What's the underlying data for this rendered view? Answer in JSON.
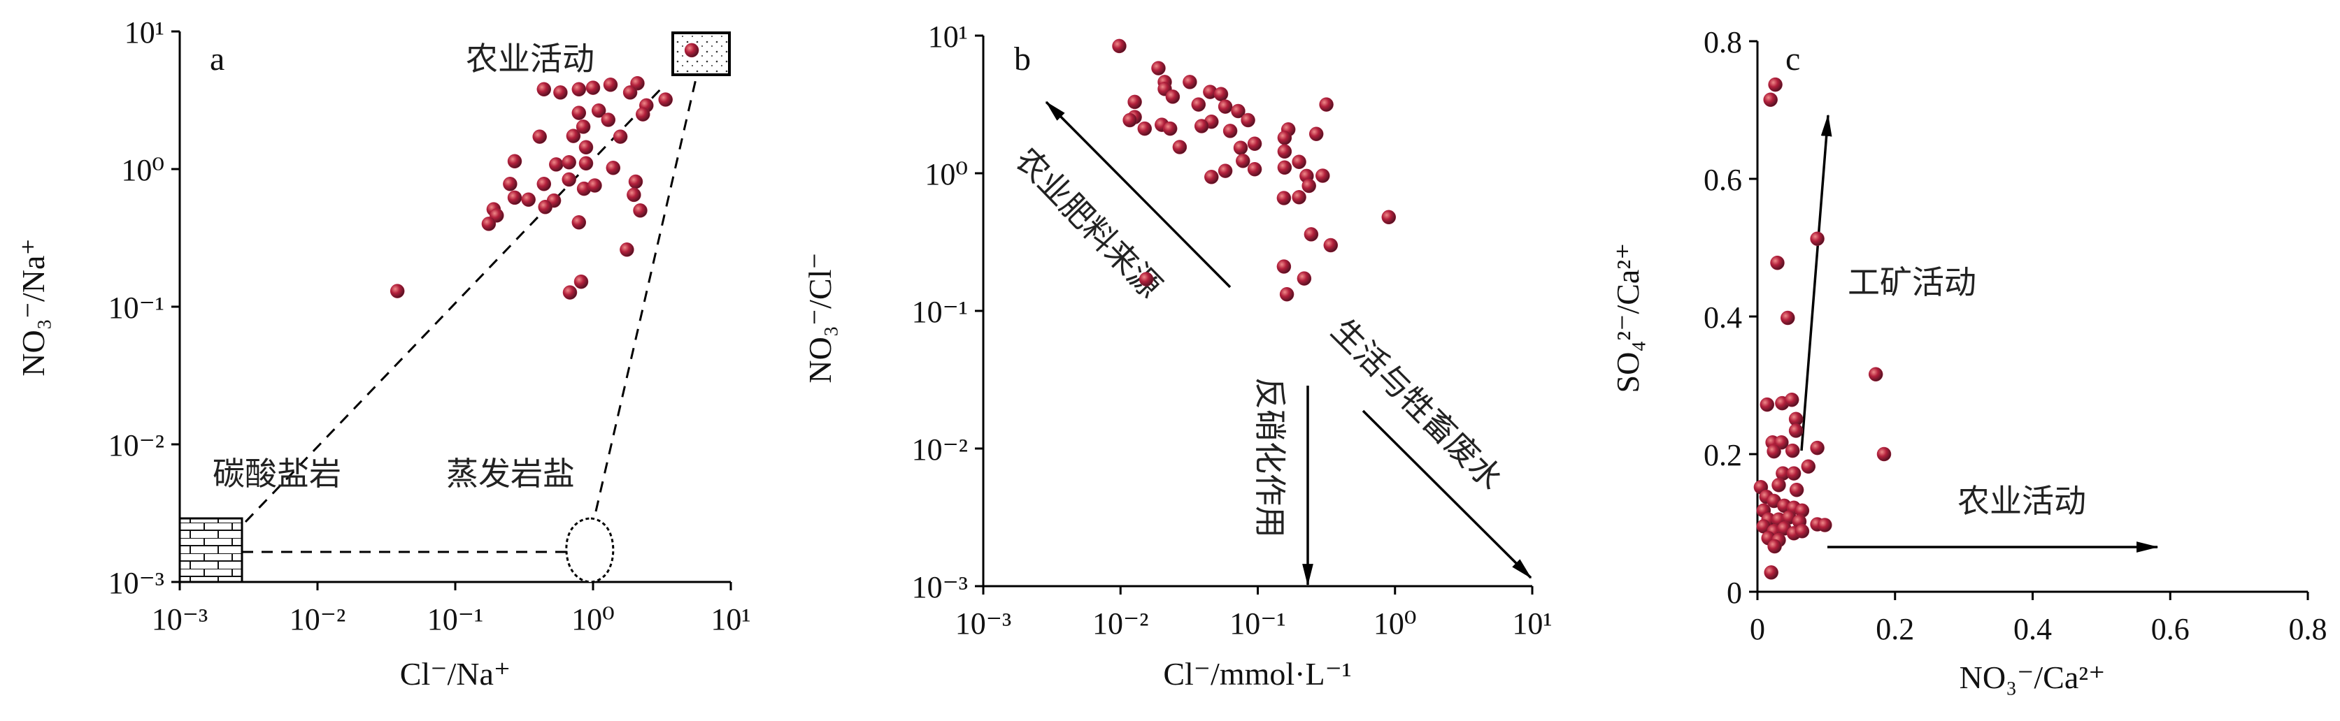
{
  "chart_data": [
    {
      "type": "scatter",
      "panel_label": "a",
      "xlabel": "Cl⁻/Na⁺",
      "ylabel": "NO₃⁻/Na⁺",
      "xscale": "log",
      "yscale": "log",
      "xlim": [
        0.001,
        10
      ],
      "ylim": [
        0.001,
        10
      ],
      "xticks": [
        "10⁻³",
        "10⁻²",
        "10⁻¹",
        "10⁰",
        "10¹"
      ],
      "yticks": [
        "10⁻³",
        "10⁻²",
        "10⁻¹",
        "10⁰",
        "10¹"
      ],
      "annotations": [
        "农业活动",
        "碳酸盐岩",
        "蒸发岩盐"
      ],
      "point_color": "#b3203c",
      "points": [
        [
          5.2,
          7.3
        ],
        [
          0.44,
          3.8
        ],
        [
          0.58,
          3.6
        ],
        [
          0.79,
          3.8
        ],
        [
          1.0,
          3.9
        ],
        [
          1.34,
          4.1
        ],
        [
          2.1,
          4.2
        ],
        [
          1.86,
          3.6
        ],
        [
          3.36,
          3.2
        ],
        [
          2.44,
          2.9
        ],
        [
          2.3,
          2.5
        ],
        [
          0.79,
          2.56
        ],
        [
          1.1,
          2.66
        ],
        [
          1.29,
          2.28
        ],
        [
          0.85,
          2.03
        ],
        [
          0.41,
          1.72
        ],
        [
          0.72,
          1.74
        ],
        [
          1.58,
          1.72
        ],
        [
          0.89,
          1.44
        ],
        [
          0.27,
          1.14
        ],
        [
          0.54,
          1.08
        ],
        [
          0.67,
          1.12
        ],
        [
          0.89,
          1.1
        ],
        [
          1.4,
          1.02
        ],
        [
          0.67,
          0.84
        ],
        [
          0.25,
          0.78
        ],
        [
          0.44,
          0.78
        ],
        [
          0.86,
          0.72
        ],
        [
          1.03,
          0.76
        ],
        [
          2.04,
          0.81
        ],
        [
          1.98,
          0.65
        ],
        [
          0.27,
          0.62
        ],
        [
          0.34,
          0.6
        ],
        [
          0.52,
          0.59
        ],
        [
          0.45,
          0.53
        ],
        [
          0.19,
          0.51
        ],
        [
          0.2,
          0.46
        ],
        [
          2.2,
          0.5
        ],
        [
          0.175,
          0.4
        ],
        [
          0.79,
          0.41
        ],
        [
          1.76,
          0.26
        ],
        [
          0.82,
          0.152
        ],
        [
          0.68,
          0.127
        ],
        [
          0.038,
          0.13
        ]
      ]
    },
    {
      "type": "scatter",
      "panel_label": "b",
      "xlabel": "Cl⁻/mmol·L⁻¹",
      "ylabel": "NO₃⁻/Cl⁻",
      "xscale": "log",
      "yscale": "log",
      "xlim": [
        0.001,
        10
      ],
      "ylim": [
        0.001,
        10
      ],
      "xticks": [
        "10⁻³",
        "10⁻²",
        "10⁻¹",
        "10⁰",
        "10¹"
      ],
      "yticks": [
        "10⁻³",
        "10⁻²",
        "10⁻¹",
        "10⁰",
        "10¹"
      ],
      "annotations": [
        "农业肥料来源",
        "生活与牲畜废水",
        "反硝化作用"
      ],
      "point_color": "#b3203c",
      "points": [
        [
          0.0098,
          8.4
        ],
        [
          0.0189,
          5.8
        ],
        [
          0.021,
          4.6
        ],
        [
          0.032,
          4.6
        ],
        [
          0.021,
          4.1
        ],
        [
          0.024,
          3.6
        ],
        [
          0.045,
          3.9
        ],
        [
          0.054,
          3.76
        ],
        [
          0.0127,
          3.3
        ],
        [
          0.037,
          3.16
        ],
        [
          0.058,
          3.05
        ],
        [
          0.072,
          2.83
        ],
        [
          0.0127,
          2.56
        ],
        [
          0.0117,
          2.43
        ],
        [
          0.02,
          2.25
        ],
        [
          0.015,
          2.11
        ],
        [
          0.023,
          2.11
        ],
        [
          0.085,
          2.43
        ],
        [
          0.046,
          2.37
        ],
        [
          0.039,
          2.2
        ],
        [
          0.063,
          2.03
        ],
        [
          0.167,
          2.08
        ],
        [
          0.267,
          1.93
        ],
        [
          0.157,
          1.81
        ],
        [
          0.027,
          1.55
        ],
        [
          0.075,
          1.53
        ],
        [
          0.095,
          1.64
        ],
        [
          0.316,
          3.16
        ],
        [
          0.157,
          1.44
        ],
        [
          0.078,
          1.23
        ],
        [
          0.2,
          1.21
        ],
        [
          0.157,
          1.1
        ],
        [
          0.095,
          1.07
        ],
        [
          0.058,
          1.04
        ],
        [
          0.046,
          0.94
        ],
        [
          0.227,
          0.955
        ],
        [
          0.297,
          0.96
        ],
        [
          0.236,
          0.81
        ],
        [
          0.155,
          0.66
        ],
        [
          0.2,
          0.67
        ],
        [
          0.9,
          0.48
        ],
        [
          0.245,
          0.36
        ],
        [
          0.34,
          0.3
        ],
        [
          0.0154,
          0.17
        ],
        [
          0.155,
          0.21
        ],
        [
          0.218,
          0.172
        ],
        [
          0.163,
          0.132
        ]
      ]
    },
    {
      "type": "scatter",
      "panel_label": "c",
      "xlabel": "NO₃⁻/Ca²⁺",
      "ylabel": "SO₄²⁻/Ca²⁺",
      "xscale": "linear",
      "yscale": "linear",
      "xlim": [
        0,
        0.8
      ],
      "ylim": [
        0,
        0.8
      ],
      "xticks": [
        "0",
        "0.2",
        "0.4",
        "0.6",
        "0.8"
      ],
      "yticks": [
        "0",
        "0.2",
        "0.4",
        "0.6",
        "0.8"
      ],
      "annotations": [
        "工矿活动",
        "农业活动"
      ],
      "point_color": "#b3203c",
      "points": [
        [
          0.026,
          0.737
        ],
        [
          0.019,
          0.715
        ],
        [
          0.087,
          0.513
        ],
        [
          0.029,
          0.478
        ],
        [
          0.044,
          0.398
        ],
        [
          0.172,
          0.316
        ],
        [
          0.184,
          0.2
        ],
        [
          0.014,
          0.272
        ],
        [
          0.036,
          0.274
        ],
        [
          0.05,
          0.279
        ],
        [
          0.056,
          0.251
        ],
        [
          0.056,
          0.234
        ],
        [
          0.087,
          0.209
        ],
        [
          0.022,
          0.217
        ],
        [
          0.035,
          0.217
        ],
        [
          0.024,
          0.204
        ],
        [
          0.051,
          0.205
        ],
        [
          0.074,
          0.182
        ],
        [
          0.037,
          0.172
        ],
        [
          0.053,
          0.172
        ],
        [
          0.031,
          0.155
        ],
        [
          0.057,
          0.148
        ],
        [
          0.005,
          0.152
        ],
        [
          0.013,
          0.138
        ],
        [
          0.024,
          0.132
        ],
        [
          0.039,
          0.125
        ],
        [
          0.053,
          0.122
        ],
        [
          0.065,
          0.118
        ],
        [
          0.009,
          0.118
        ],
        [
          0.016,
          0.105
        ],
        [
          0.031,
          0.105
        ],
        [
          0.046,
          0.108
        ],
        [
          0.061,
          0.102
        ],
        [
          0.087,
          0.098
        ],
        [
          0.098,
          0.097
        ],
        [
          0.009,
          0.095
        ],
        [
          0.024,
          0.088
        ],
        [
          0.039,
          0.092
        ],
        [
          0.053,
          0.085
        ],
        [
          0.065,
          0.088
        ],
        [
          0.016,
          0.078
        ],
        [
          0.031,
          0.075
        ],
        [
          0.025,
          0.066
        ],
        [
          0.02,
          0.028
        ]
      ]
    }
  ]
}
